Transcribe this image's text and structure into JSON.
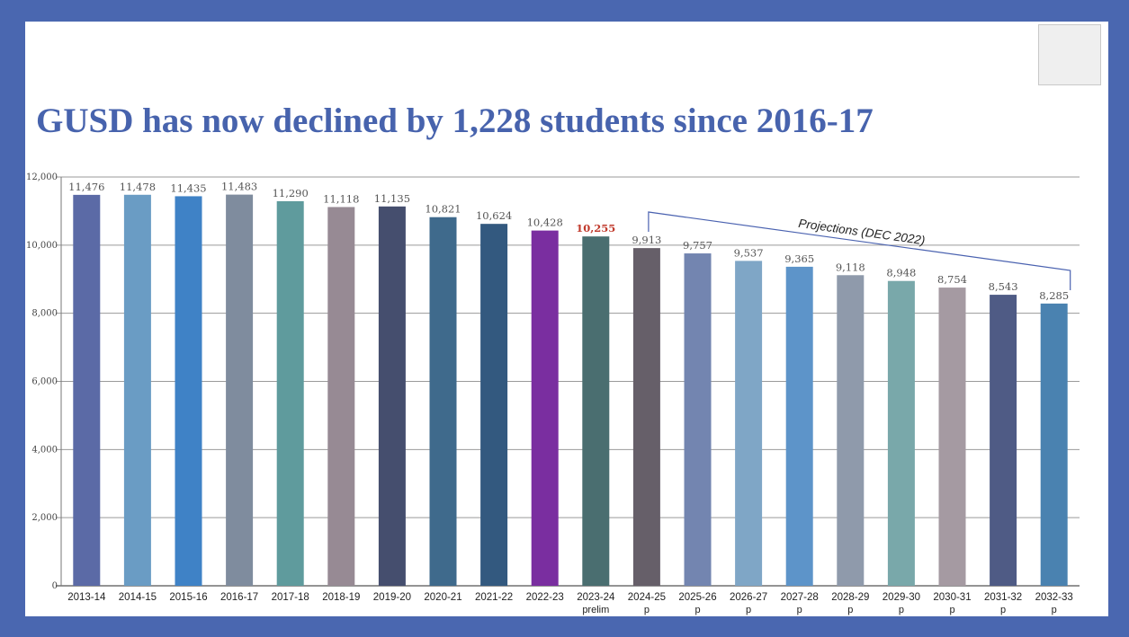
{
  "slide": {
    "title": "GUSD has now declined by 1,228 students since 2016-17"
  },
  "chart_data": {
    "type": "bar",
    "title": "",
    "xlabel": "",
    "ylabel": "",
    "ylim": [
      0,
      12000
    ],
    "yticks": [
      0,
      2000,
      4000,
      6000,
      8000,
      10000,
      12000
    ],
    "ytick_labels": [
      "0",
      "2,000",
      "4,000",
      "6,000",
      "8,000",
      "10,000",
      "12,000"
    ],
    "grid": true,
    "categories": [
      "2013-14",
      "2014-15",
      "2015-16",
      "2016-17",
      "2017-18",
      "2018-19",
      "2019-20",
      "2020-21",
      "2021-22",
      "2022-23",
      "2023-24",
      "2024-25",
      "2025-26",
      "2026-27",
      "2027-28",
      "2028-29",
      "2029-30",
      "2030-31",
      "2031-32",
      "2032-33"
    ],
    "category_sublabels": [
      "",
      "",
      "",
      "",
      "",
      "",
      "",
      "",
      "",
      "",
      "prelim",
      "p",
      "p",
      "p",
      "p",
      "p",
      "p",
      "p",
      "p",
      "p"
    ],
    "values": [
      11476,
      11478,
      11435,
      11483,
      11290,
      11118,
      11135,
      10821,
      10624,
      10428,
      10255,
      9913,
      9757,
      9537,
      9365,
      9118,
      8948,
      8754,
      8543,
      8285
    ],
    "value_labels": [
      "11,476",
      "11,478",
      "11,435",
      "11,483",
      "11,290",
      "11,118",
      "11,135",
      "10,821",
      "10,624",
      "10,428",
      "10,255",
      "9,913",
      "9,757",
      "9,537",
      "9,365",
      "9,118",
      "8,948",
      "8,754",
      "8,543",
      "8,285"
    ],
    "highlight_label_index": 10,
    "highlight_label_color": "#c0392b",
    "bar_colors": [
      "#5b6aa6",
      "#6a9cc4",
      "#3f82c6",
      "#7f8c9e",
      "#5f9b9d",
      "#978a94",
      "#454e6e",
      "#3f6a8c",
      "#33597f",
      "#7a2ea0",
      "#4a6e70",
      "#665f69",
      "#7385b0",
      "#7fa6c6",
      "#5d94c9",
      "#8f9aab",
      "#79a8aa",
      "#a59aa2",
      "#4f5b85",
      "#4a82b0"
    ],
    "annotation": {
      "text": "Projections (DEC 2022)",
      "from_index": 11,
      "to_index": 19,
      "color": "#4a62b0"
    }
  }
}
